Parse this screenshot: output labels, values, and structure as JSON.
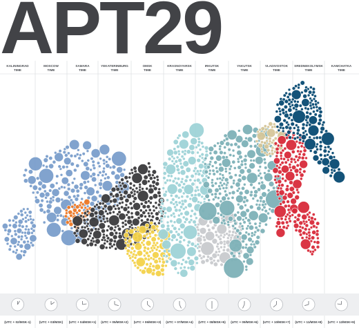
{
  "title": "APT29",
  "colors": {
    "kaliningrad": "#7b9fcc",
    "moscow": "#7b9fcc",
    "samara": "#f07a26",
    "yekaterinburg": "#3b3b3d",
    "omsk": "#f4d24a",
    "krasnoyarsk": "#9fd3d8",
    "irkutsk": "#c9cbce",
    "yakutsk": "#7eb2b8",
    "yakutsk_light": "#d6c79a",
    "vladivostok": "#d92b3a",
    "magadan": "#084a72",
    "band": "#eeeff1",
    "divider": "#d6d8dc",
    "clock_border": "#b9bcc1",
    "text": "#4a4d52"
  },
  "zones": [
    {
      "name_top": "KALININGRAD",
      "name_bottom": "TIME",
      "utc": "(UTC + 02/MSK-1)",
      "icon": "clock-icon"
    },
    {
      "name_top": "MOSCOW",
      "name_bottom": "TIME",
      "utc": "(UTC + 03/MSK)",
      "icon": "clock-icon"
    },
    {
      "name_top": "SAMARA",
      "name_bottom": "TIME",
      "utc": "(UTC + 04/MSK+1)",
      "icon": "clock-icon"
    },
    {
      "name_top": "YEKATERINBURG",
      "name_bottom": "TIME",
      "utc": "(UTC + 05/MSK+2)",
      "icon": "clock-icon"
    },
    {
      "name_top": "OMSK",
      "name_bottom": "TIME",
      "utc": "(UTC + 06/MSK+3)",
      "icon": "clock-icon"
    },
    {
      "name_top": "KRASNOYARSK",
      "name_bottom": "TIME",
      "utc": "(UTC + 07/MSK+4)",
      "icon": "clock-icon"
    },
    {
      "name_top": "IRKUTSK",
      "name_bottom": "TIME",
      "utc": "(UTC + 08/MSK+5)",
      "icon": "clock-icon"
    },
    {
      "name_top": "YAKUTSK",
      "name_bottom": "TIME",
      "utc": "(UTC + 09/MSK+6)",
      "icon": "clock-icon"
    },
    {
      "name_top": "VLADIVOSTOK",
      "name_bottom": "TIME",
      "utc": "(UTC + 10/MSK+7)",
      "icon": "clock-icon"
    },
    {
      "name_top": "SREDNEKOLYMSK",
      "name_bottom": "TIME",
      "utc": "(UTC + 11/MSK+8)",
      "icon": "clock-icon"
    },
    {
      "name_top": "KAMCHATKA",
      "name_bottom": "TIME",
      "utc": "(UTC + 12/MSK+9)",
      "icon": "clock-icon"
    }
  ]
}
